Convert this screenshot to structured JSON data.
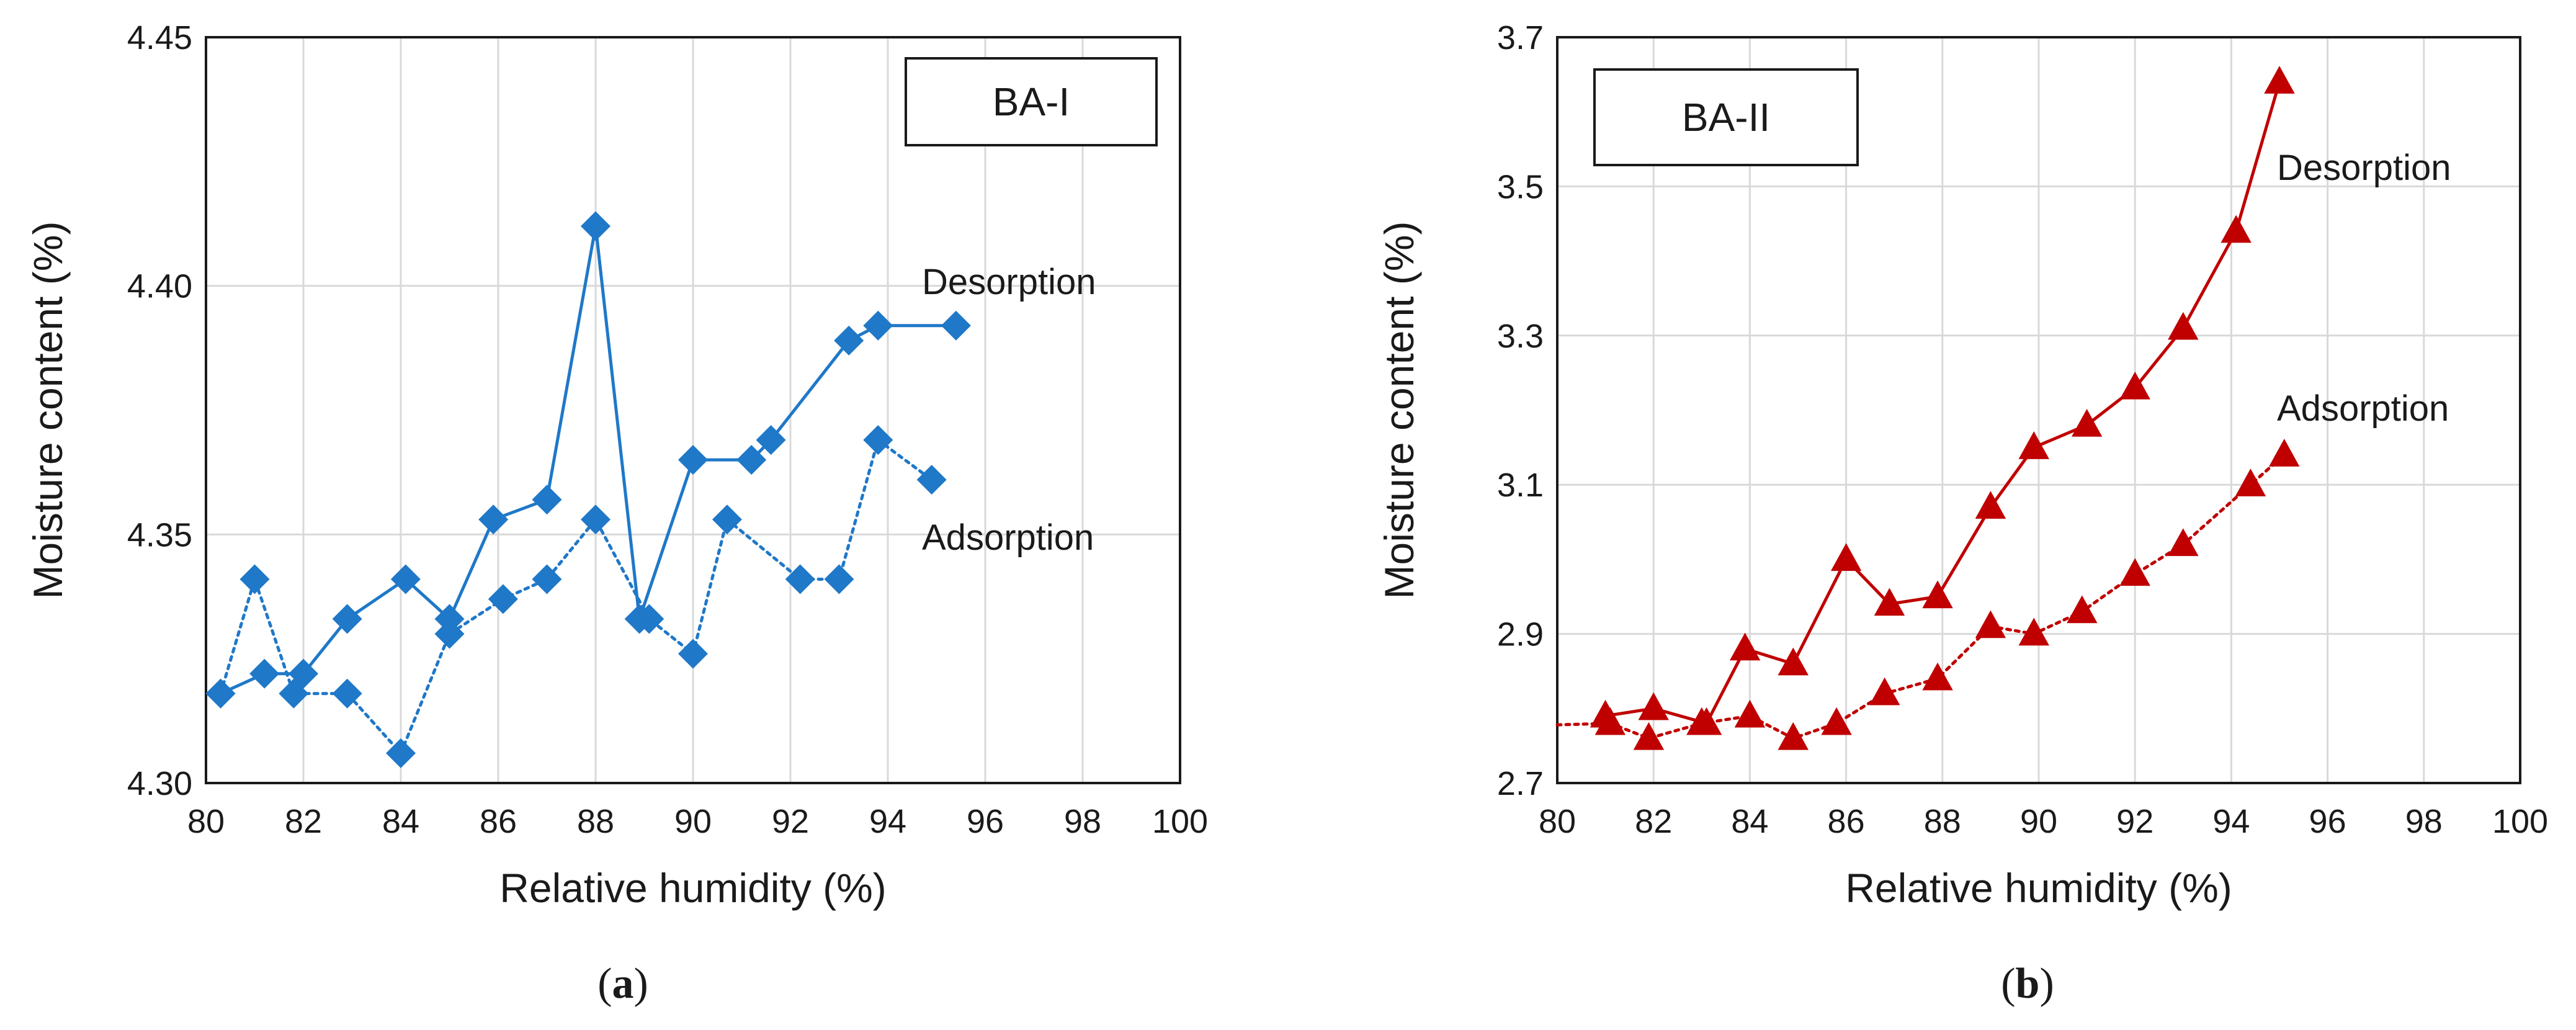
{
  "chart_data": [
    {
      "type": "line",
      "panel": "a",
      "badge": "BA-I",
      "xlabel": "Relative humidity (%)",
      "ylabel": "Moisture content (%)",
      "xlim": [
        80,
        100
      ],
      "ylim": [
        4.3,
        4.45
      ],
      "x_ticks": [
        "80",
        "82",
        "84",
        "86",
        "88",
        "90",
        "92",
        "94",
        "96",
        "98",
        "100"
      ],
      "y_ticks": [
        "4.30",
        "4.35",
        "4.40",
        "4.45"
      ],
      "grid": true,
      "color": "#1f78c8",
      "marker": "diamond",
      "series": [
        {
          "name": "Desorption",
          "line": "solid",
          "x": [
            80.3,
            81.2,
            82.0,
            82.9,
            84.1,
            85.0,
            85.9,
            87.0,
            88.0,
            88.9,
            90.0,
            91.2,
            91.6,
            93.2,
            93.8,
            95.4
          ],
          "y": [
            4.318,
            4.322,
            4.322,
            4.333,
            4.341,
            4.333,
            4.353,
            4.357,
            4.412,
            4.333,
            4.365,
            4.365,
            4.369,
            4.389,
            4.392,
            4.392
          ]
        },
        {
          "name": "Adsorption",
          "line": "dotted",
          "x": [
            80.3,
            81.0,
            81.8,
            82.9,
            84.0,
            85.0,
            86.1,
            87.0,
            88.0,
            89.1,
            90.0,
            90.7,
            92.2,
            93.0,
            93.8,
            94.9
          ],
          "y": [
            4.318,
            4.341,
            4.318,
            4.318,
            4.306,
            4.33,
            4.337,
            4.341,
            4.353,
            4.333,
            4.326,
            4.353,
            4.341,
            4.341,
            4.369,
            4.361
          ]
        }
      ],
      "caption": "(a)"
    },
    {
      "type": "line",
      "panel": "b",
      "badge": "BA-II",
      "xlabel": "Relative humidity (%)",
      "ylabel": "Moisture content (%)",
      "xlim": [
        80,
        100
      ],
      "ylim": [
        2.7,
        3.7
      ],
      "x_ticks": [
        "80",
        "82",
        "84",
        "86",
        "88",
        "90",
        "92",
        "94",
        "96",
        "98",
        "100"
      ],
      "y_ticks": [
        "2.7",
        "2.9",
        "3.1",
        "3.3",
        "3.5",
        "3.7"
      ],
      "grid": true,
      "color": "#c00000",
      "marker": "triangle",
      "series": [
        {
          "name": "Desorption",
          "line": "solid",
          "x": [
            81.0,
            82.0,
            83.1,
            83.9,
            84.9,
            86.0,
            86.9,
            87.9,
            89.0,
            89.9,
            91.0,
            92.0,
            93.0,
            94.1,
            95.0
          ],
          "y": [
            2.79,
            2.8,
            2.78,
            2.88,
            2.86,
            3.0,
            2.94,
            2.95,
            3.07,
            3.15,
            3.18,
            3.23,
            3.31,
            3.44,
            3.64
          ],
          "lead_in_from": null
        },
        {
          "name": "Adsorption",
          "line": "dotted",
          "lead_in_from": [
            80.0,
            2.778
          ],
          "x": [
            81.1,
            81.9,
            83.0,
            84.0,
            84.9,
            85.8,
            86.8,
            87.9,
            89.0,
            89.9,
            90.9,
            92.0,
            93.0,
            94.4,
            95.1
          ],
          "y": [
            2.78,
            2.76,
            2.78,
            2.79,
            2.76,
            2.78,
            2.82,
            2.84,
            2.91,
            2.9,
            2.93,
            2.98,
            3.02,
            3.1,
            3.14
          ]
        }
      ],
      "caption": "(b)"
    }
  ]
}
